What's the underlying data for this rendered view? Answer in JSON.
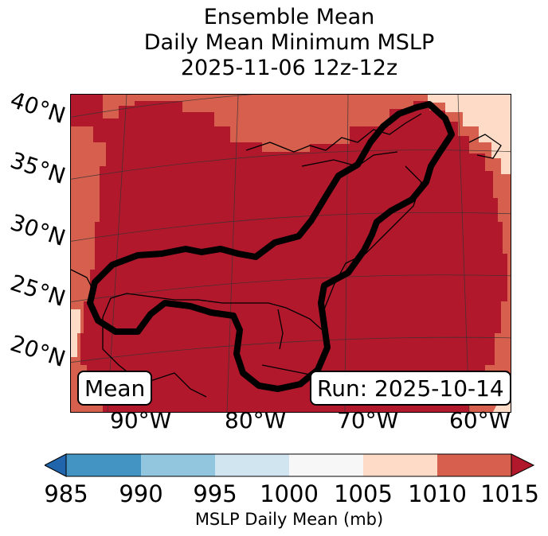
{
  "title": {
    "line1": "Ensemble Mean",
    "line2": "Daily Mean Minimum MSLP",
    "line3": "2025-11-06 12z-12z"
  },
  "map": {
    "lat_labels": [
      "40°N",
      "35°N",
      "30°N",
      "25°N",
      "20°N"
    ],
    "lon_labels": [
      "90°W",
      "80°W",
      "70°W",
      "60°W"
    ],
    "mean_label": "Mean",
    "run_label": "Run: 2025-10-14",
    "fill_colors": {
      "strong_low": "#b2182b",
      "mid": "#d6604d",
      "weak": "#fddbc7",
      "contour": "#000000"
    }
  },
  "colorbar": {
    "ticks": [
      "985",
      "990",
      "995",
      "1000",
      "1005",
      "1010",
      "1015"
    ],
    "colors": [
      "#4393c3",
      "#92c5de",
      "#d1e5f0",
      "#f7f7f7",
      "#fddbc7",
      "#d6604d"
    ],
    "under_color": "#2166ac",
    "over_color": "#b2182b",
    "label": "MSLP Daily Mean (mb)"
  }
}
